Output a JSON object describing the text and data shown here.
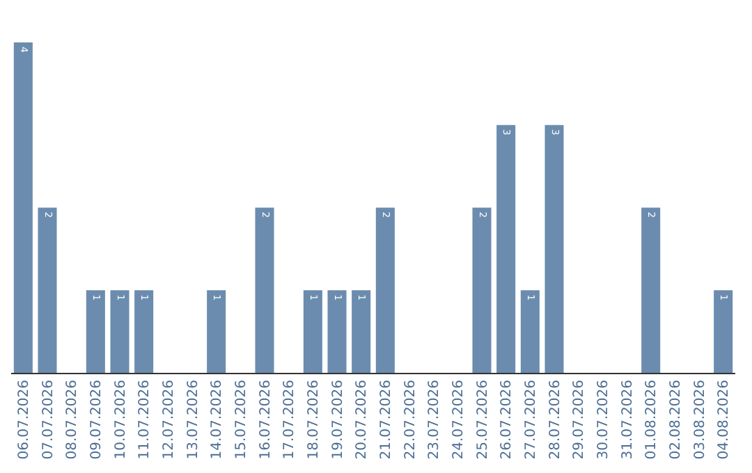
{
  "chart_data": {
    "type": "bar",
    "categories": [
      "06.07.2026",
      "07.07.2026",
      "08.07.2026",
      "09.07.2026",
      "10.07.2026",
      "11.07.2026",
      "12.07.2026",
      "13.07.2026",
      "14.07.2026",
      "15.07.2026",
      "16.07.2026",
      "17.07.2026",
      "18.07.2026",
      "19.07.2026",
      "20.07.2026",
      "21.07.2026",
      "22.07.2026",
      "23.07.2026",
      "24.07.2026",
      "25.07.2026",
      "26.07.2026",
      "27.07.2026",
      "28.07.2026",
      "29.07.2026",
      "30.07.2026",
      "31.07.2026",
      "01.08.2026",
      "02.08.2026",
      "03.08.2026",
      "04.08.2026"
    ],
    "values": [
      4,
      2,
      0,
      1,
      1,
      1,
      0,
      0,
      1,
      0,
      2,
      0,
      1,
      1,
      1,
      2,
      0,
      0,
      0,
      2,
      3,
      1,
      3,
      0,
      0,
      0,
      2,
      0,
      0,
      1
    ],
    "value_labels": [
      "4",
      "2",
      null,
      "1",
      "1",
      "1",
      null,
      null,
      "1",
      null,
      "2",
      null,
      "1",
      "1",
      "1",
      "2",
      null,
      null,
      null,
      "2",
      "3",
      "1",
      "3",
      null,
      null,
      null,
      "2",
      null,
      null,
      "1"
    ],
    "color": "#6b8cae",
    "tick_labels": "x",
    "legend": false
  }
}
